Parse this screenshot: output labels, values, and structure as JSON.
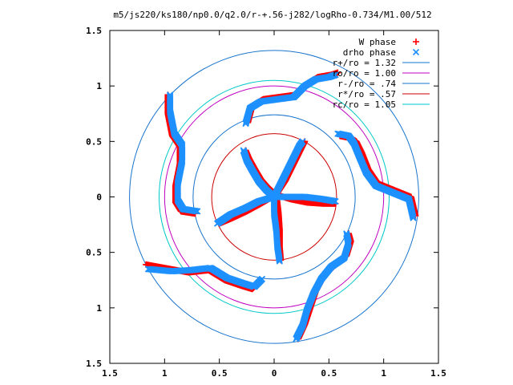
{
  "chart_data": {
    "type": "scatter",
    "title": "m5/js220/ks180/np0.0/q2.0/r-+.56-j282/logRho-0.734/M1.00/512",
    "xlim": [
      -1.5,
      1.5
    ],
    "ylim": [
      -1.5,
      1.5
    ],
    "x_ticks": [
      -1.5,
      -1,
      -0.5,
      0,
      0.5,
      1,
      1.5
    ],
    "y_ticks": [
      -1.5,
      -1,
      -0.5,
      0,
      0.5,
      1,
      1.5
    ],
    "x_tick_labels": [
      "1.5",
      "1",
      "0.5",
      "0",
      "0.5",
      "1",
      "1.5"
    ],
    "y_tick_labels": [
      "1.5",
      "1",
      "0.5",
      "0",
      "0.5",
      "1",
      "1.5"
    ],
    "grid": false,
    "legend_position": "top-right",
    "legend": [
      {
        "label": "W phase",
        "marker": "+",
        "color": "#ff0000"
      },
      {
        "label": "drho phase",
        "marker": "x",
        "color": "#1e90ff"
      },
      {
        "label": "r+/ro = 1.32",
        "line": true,
        "color": "#1874cd"
      },
      {
        "label": "ro/ro = 1.00",
        "line": true,
        "color": "#c000c0"
      },
      {
        "label": "r-/ro = .74",
        "line": true,
        "color": "#1874cd"
      },
      {
        "label": "r*/ro = .57",
        "line": true,
        "color": "#cc0000"
      },
      {
        "label": "rc/ro = 1.05",
        "line": true,
        "color": "#00c8c8"
      }
    ],
    "circles": [
      {
        "name": "r+/ro",
        "r": 1.32,
        "color": "#1874cd"
      },
      {
        "name": "ro/ro",
        "r": 1.0,
        "color": "#c000c0"
      },
      {
        "name": "r-/ro",
        "r": 0.74,
        "color": "#1874cd"
      },
      {
        "name": "r*/ro",
        "r": 0.57,
        "color": "#cc0000"
      },
      {
        "name": "rc/ro",
        "r": 1.05,
        "color": "#00c8c8"
      }
    ],
    "series": [
      {
        "name": "W phase",
        "color": "#ff0000",
        "arms": [
          [
            [
              0.02,
              0.02
            ],
            [
              -0.05,
              0.08
            ],
            [
              -0.12,
              0.16
            ],
            [
              -0.18,
              0.26
            ],
            [
              -0.23,
              0.35
            ],
            [
              -0.26,
              0.42
            ]
          ],
          [
            [
              0.02,
              0.02
            ],
            [
              0.1,
              0.14
            ],
            [
              0.18,
              0.3
            ],
            [
              0.25,
              0.44
            ],
            [
              0.28,
              0.5
            ]
          ],
          [
            [
              0.02,
              0.02
            ],
            [
              0.15,
              -0.02
            ],
            [
              0.3,
              -0.05
            ],
            [
              0.45,
              -0.06
            ],
            [
              0.56,
              -0.06
            ]
          ],
          [
            [
              0.02,
              0.02
            ],
            [
              0.04,
              -0.15
            ],
            [
              0.05,
              -0.3
            ],
            [
              0.05,
              -0.45
            ],
            [
              0.06,
              -0.57
            ]
          ],
          [
            [
              0.02,
              0.02
            ],
            [
              -0.12,
              -0.06
            ],
            [
              -0.25,
              -0.13
            ],
            [
              -0.38,
              -0.19
            ],
            [
              -0.5,
              -0.24
            ]
          ],
          [
            [
              -0.24,
              0.67
            ],
            [
              -0.2,
              0.82
            ],
            [
              -0.1,
              0.88
            ],
            [
              0.05,
              0.9
            ],
            [
              0.2,
              0.92
            ],
            [
              0.3,
              1.02
            ],
            [
              0.4,
              1.08
            ],
            [
              0.52,
              1.1
            ],
            [
              0.58,
              1.12
            ]
          ],
          [
            [
              0.6,
              0.55
            ],
            [
              0.7,
              0.53
            ],
            [
              0.75,
              0.5
            ],
            [
              0.8,
              0.4
            ],
            [
              0.86,
              0.25
            ],
            [
              0.95,
              0.12
            ],
            [
              1.1,
              0.06
            ],
            [
              1.25,
              0.0
            ],
            [
              1.29,
              -0.17
            ]
          ],
          [
            [
              0.68,
              -0.33
            ],
            [
              0.7,
              -0.4
            ],
            [
              0.66,
              -0.53
            ],
            [
              0.55,
              -0.62
            ],
            [
              0.45,
              -0.72
            ],
            [
              0.38,
              -0.85
            ],
            [
              0.33,
              -1.0
            ],
            [
              0.28,
              -1.15
            ],
            [
              0.22,
              -1.28
            ]
          ],
          [
            [
              -0.13,
              -0.76
            ],
            [
              -0.2,
              -0.83
            ],
            [
              -0.3,
              -0.8
            ],
            [
              -0.45,
              -0.75
            ],
            [
              -0.6,
              -0.66
            ],
            [
              -0.78,
              -0.68
            ],
            [
              -0.95,
              -0.65
            ],
            [
              -1.17,
              -0.61
            ]
          ],
          [
            [
              -0.72,
              -0.15
            ],
            [
              -0.85,
              -0.13
            ],
            [
              -0.9,
              -0.05
            ],
            [
              -0.9,
              0.1
            ],
            [
              -0.86,
              0.3
            ],
            [
              -0.86,
              0.45
            ],
            [
              -0.93,
              0.55
            ],
            [
              -0.97,
              0.75
            ],
            [
              -0.97,
              0.92
            ]
          ]
        ]
      },
      {
        "name": "drho phase",
        "color": "#1e90ff",
        "arms": [
          [
            [
              0.0,
              0.0
            ],
            [
              -0.07,
              0.06
            ],
            [
              -0.14,
              0.14
            ],
            [
              -0.2,
              0.24
            ],
            [
              -0.25,
              0.33
            ],
            [
              -0.28,
              0.42
            ]
          ],
          [
            [
              0.0,
              0.0
            ],
            [
              0.08,
              0.16
            ],
            [
              0.16,
              0.32
            ],
            [
              0.23,
              0.46
            ],
            [
              0.26,
              0.5
            ]
          ],
          [
            [
              0.0,
              0.0
            ],
            [
              0.14,
              0.0
            ],
            [
              0.28,
              0.0
            ],
            [
              0.44,
              -0.02
            ],
            [
              0.56,
              -0.04
            ]
          ],
          [
            [
              0.0,
              0.0
            ],
            [
              0.0,
              -0.15
            ],
            [
              0.02,
              -0.3
            ],
            [
              0.03,
              -0.45
            ],
            [
              0.05,
              -0.58
            ]
          ],
          [
            [
              0.0,
              0.0
            ],
            [
              -0.14,
              -0.04
            ],
            [
              -0.26,
              -0.1
            ],
            [
              -0.4,
              -0.16
            ],
            [
              -0.52,
              -0.24
            ]
          ],
          [
            [
              -0.26,
              0.66
            ],
            [
              -0.22,
              0.8
            ],
            [
              -0.12,
              0.86
            ],
            [
              0.03,
              0.88
            ],
            [
              0.18,
              0.9
            ],
            [
              0.28,
              1.0
            ],
            [
              0.38,
              1.06
            ],
            [
              0.5,
              1.08
            ],
            [
              0.56,
              1.1
            ]
          ],
          [
            [
              0.58,
              0.57
            ],
            [
              0.68,
              0.55
            ],
            [
              0.73,
              0.48
            ],
            [
              0.78,
              0.36
            ],
            [
              0.84,
              0.22
            ],
            [
              0.93,
              0.1
            ],
            [
              1.08,
              0.04
            ],
            [
              1.23,
              -0.02
            ],
            [
              1.27,
              -0.19
            ]
          ],
          [
            [
              0.66,
              -0.33
            ],
            [
              0.68,
              -0.42
            ],
            [
              0.64,
              -0.55
            ],
            [
              0.52,
              -0.63
            ],
            [
              0.43,
              -0.74
            ],
            [
              0.36,
              -0.87
            ],
            [
              0.3,
              -1.02
            ],
            [
              0.26,
              -1.16
            ],
            [
              0.2,
              -1.28
            ]
          ],
          [
            [
              -0.11,
              -0.74
            ],
            [
              -0.18,
              -0.81
            ],
            [
              -0.28,
              -0.78
            ],
            [
              -0.43,
              -0.73
            ],
            [
              -0.58,
              -0.64
            ],
            [
              -0.76,
              -0.66
            ],
            [
              -0.93,
              -0.67
            ],
            [
              -1.15,
              -0.65
            ]
          ],
          [
            [
              -0.7,
              -0.13
            ],
            [
              -0.83,
              -0.11
            ],
            [
              -0.88,
              -0.03
            ],
            [
              -0.88,
              0.12
            ],
            [
              -0.84,
              0.32
            ],
            [
              -0.84,
              0.47
            ],
            [
              -0.91,
              0.57
            ],
            [
              -0.95,
              0.77
            ],
            [
              -0.95,
              0.92
            ]
          ]
        ]
      }
    ]
  }
}
